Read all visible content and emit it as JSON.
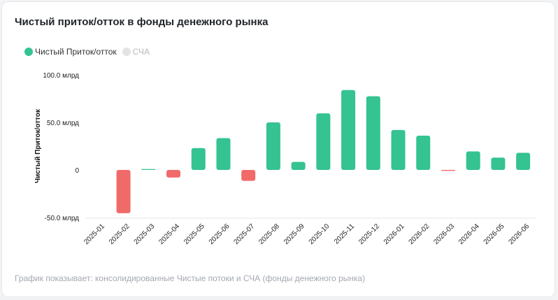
{
  "card": {
    "title": "Чистый приток/отток в фонды денежного рынка",
    "footer": "График показывает: консолидированные Чистые потоки и СЧА (фонды денежного рынка)"
  },
  "legend": [
    {
      "label": "Чистый Приток/отток",
      "color": "#34c391",
      "active": true
    },
    {
      "label": "СЧА",
      "color": "#e3e3e3",
      "active": false
    }
  ],
  "chart_data": {
    "type": "bar",
    "title": "Чистый приток/отток в фонды денежного рынка",
    "ylabel": "Чистый Приток/отток",
    "xlabel": "",
    "ylim": [
      -50,
      100
    ],
    "yticks": [
      {
        "value": 100,
        "label": "100.0 млрд"
      },
      {
        "value": 50,
        "label": "50.0 млрд"
      },
      {
        "value": 0,
        "label": "0"
      },
      {
        "value": -50,
        "label": "-50.0 млрд"
      }
    ],
    "categories": [
      "2025-01",
      "2025-02",
      "2025-03",
      "2025-04",
      "2025-05",
      "2025-06",
      "2025-07",
      "2025-08",
      "2025-09",
      "2025-10",
      "2025-11",
      "2025-12",
      "2026-01",
      "2026-02",
      "2026-03",
      "2026-04",
      "2026-05",
      "2026-06"
    ],
    "series": [
      {
        "name": "Чистый Приток/отток",
        "values": [
          0,
          -45.5,
          0.3,
          -8,
          23,
          33.5,
          -11.5,
          50,
          8.5,
          59.5,
          84,
          77.5,
          42,
          36,
          -1,
          19.5,
          13,
          18
        ]
      }
    ],
    "colors": {
      "positive": "#34c391",
      "negative": "#f06a6a"
    },
    "grid": false,
    "legend_position": "top-left"
  }
}
